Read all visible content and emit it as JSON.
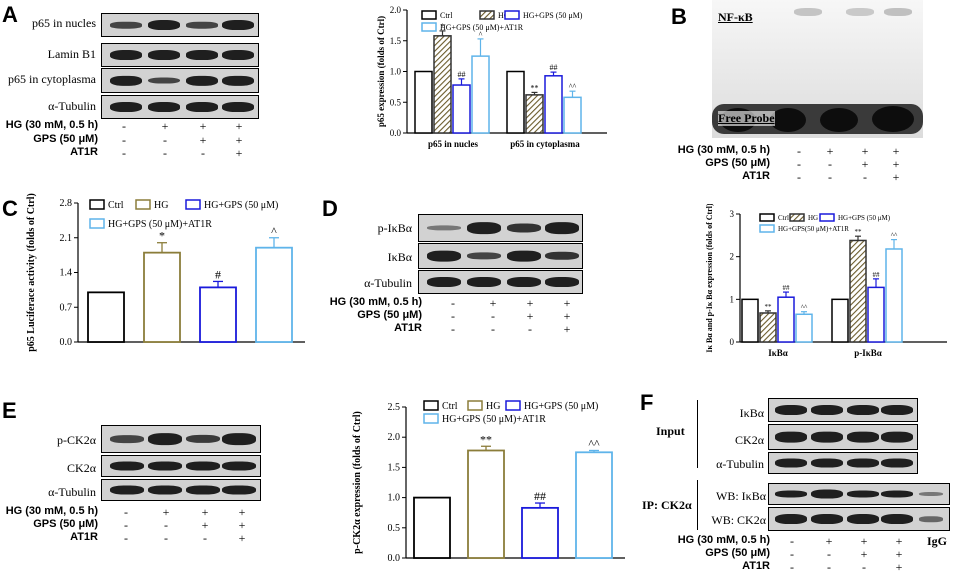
{
  "panels": {
    "A": "A",
    "B": "B",
    "C": "C",
    "D": "D",
    "E": "E",
    "F": "F"
  },
  "conditions": {
    "hg": "HG (30 mM, 0.5 h)",
    "gps": "GPS (50 μM)",
    "at1r": "AT1R",
    "hg_signs": [
      "-",
      "+",
      "+",
      "+"
    ],
    "gps_signs": [
      "-",
      "-",
      "+",
      "+"
    ],
    "at1r_signs": [
      "-",
      "-",
      "-",
      "+"
    ],
    "hg_signs_f": [
      "-",
      "+",
      "+",
      "+",
      "IgG"
    ],
    "gps_signs_f": [
      "-",
      "-",
      "+",
      "+",
      ""
    ],
    "at1r_signs_f": [
      "-",
      "-",
      "-",
      "+",
      ""
    ]
  },
  "blots": {
    "A": [
      "p65 in nucles",
      "Lamin B1",
      "p65 in cytoplasma",
      "α-Tubulin"
    ],
    "B": {
      "top": "NF-κB",
      "bottom": "Free Probe"
    },
    "D": [
      "p-IκBα",
      "IκBα",
      "α-Tubulin"
    ],
    "E": [
      "p-CK2α",
      "CK2α",
      "α-Tubulin"
    ],
    "F": {
      "input_label": "Input",
      "ip_label": "IP: CK2α",
      "input_rows": [
        "IκBα",
        "CK2α",
        "α-Tubulin"
      ],
      "ip_rows": [
        "WB: IκBα",
        "WB: CK2α"
      ]
    }
  },
  "colors": {
    "ctrl": "#000000",
    "hg_a": "#555555",
    "hg_c": "#8b7d3a",
    "hg_gps": "#1a1adb",
    "at1r": "#5fb4ea"
  },
  "chart_data": [
    {
      "id": "A",
      "type": "bar",
      "ylabel": "p65 expression (folds of Ctrl)",
      "ylim": [
        0,
        2.0
      ],
      "yticks": [
        "0.0",
        "0.5",
        "1.0",
        "1.5",
        "2.0"
      ],
      "categories": [
        "p65 in nucles",
        "p65 in cytoplasma"
      ],
      "legend": [
        "Ctrl",
        "HG",
        "HG+GPS (50 μM)",
        "HG+GPS (50 μM)+AT1R"
      ],
      "series": [
        {
          "name": "Ctrl",
          "values": [
            1.0,
            1.0
          ],
          "errors": [
            0,
            0
          ],
          "annot": [
            "",
            ""
          ]
        },
        {
          "name": "HG",
          "values": [
            1.58,
            0.62
          ],
          "errors": [
            0.08,
            0.04
          ],
          "annot": [
            "*",
            "**"
          ]
        },
        {
          "name": "HG+GPS (50 μM)",
          "values": [
            0.78,
            0.93
          ],
          "errors": [
            0.1,
            0.06
          ],
          "annot": [
            "##",
            "##"
          ]
        },
        {
          "name": "HG+GPS (50 μM)+AT1R",
          "values": [
            1.25,
            0.58
          ],
          "errors": [
            0.28,
            0.1
          ],
          "annot": [
            "^",
            "^^"
          ]
        }
      ]
    },
    {
      "id": "C",
      "type": "bar",
      "ylabel": "p65 Luciferace activity (folds of Ctrl)",
      "ylim": [
        0,
        2.8
      ],
      "yticks": [
        "0.0",
        "0.7",
        "1.4",
        "2.1",
        "2.8"
      ],
      "categories": [
        "Ctrl",
        "HG",
        "HG+GPS (50 μM)",
        "HG+GPS (50 μM)+AT1R"
      ],
      "legend": [
        "Ctrl",
        "HG",
        "HG+GPS (50 μM)",
        "HG+GPS (50 μM)+AT1R"
      ],
      "values": [
        1.0,
        1.8,
        1.1,
        1.9
      ],
      "errors": [
        0,
        0.2,
        0.12,
        0.2
      ],
      "annot": [
        "",
        "*",
        "#",
        "^"
      ]
    },
    {
      "id": "D",
      "type": "bar",
      "ylabel": "Iκ Bα and p-Iκ Bα expression (folds of Ctrl)",
      "ylim": [
        0,
        3
      ],
      "yticks": [
        "0",
        "1",
        "2",
        "3"
      ],
      "categories": [
        "IκBα",
        "p-IκBα"
      ],
      "legend": [
        "Ctrl",
        "HG",
        "HG+GPS (50 μM)",
        "HG+GPS(50 μM)+AT1R"
      ],
      "series": [
        {
          "name": "Ctrl",
          "values": [
            1.0,
            1.0
          ],
          "errors": [
            0,
            0
          ],
          "annot": [
            "",
            ""
          ]
        },
        {
          "name": "HG",
          "values": [
            0.68,
            2.38
          ],
          "errors": [
            0.05,
            0.1
          ],
          "annot": [
            "**",
            "**"
          ]
        },
        {
          "name": "HG+GPS (50 μM)",
          "values": [
            1.05,
            1.28
          ],
          "errors": [
            0.12,
            0.2
          ],
          "annot": [
            "##",
            "##"
          ]
        },
        {
          "name": "HG+GPS(50 μM)+AT1R",
          "values": [
            0.65,
            2.18
          ],
          "errors": [
            0.06,
            0.22
          ],
          "annot": [
            "^^",
            "^^"
          ]
        }
      ]
    },
    {
      "id": "E",
      "type": "bar",
      "ylabel": "p-CK2α expression (folds of Ctrl)",
      "ylim": [
        0,
        2.5
      ],
      "yticks": [
        "0.0",
        "0.5",
        "1.0",
        "1.5",
        "2.0",
        "2.5"
      ],
      "categories": [
        "Ctrl",
        "HG",
        "HG+GPS (50 μM)",
        "HG+GPS (50 μM)+AT1R"
      ],
      "legend": [
        "Ctrl",
        "HG",
        "HG+GPS (50 μM)",
        "HG+GPS (50 μM)+AT1R"
      ],
      "values": [
        1.0,
        1.78,
        0.83,
        1.75
      ],
      "errors": [
        0,
        0.07,
        0.08,
        0.03
      ],
      "annot": [
        "",
        "**",
        "##",
        "^^"
      ]
    }
  ]
}
